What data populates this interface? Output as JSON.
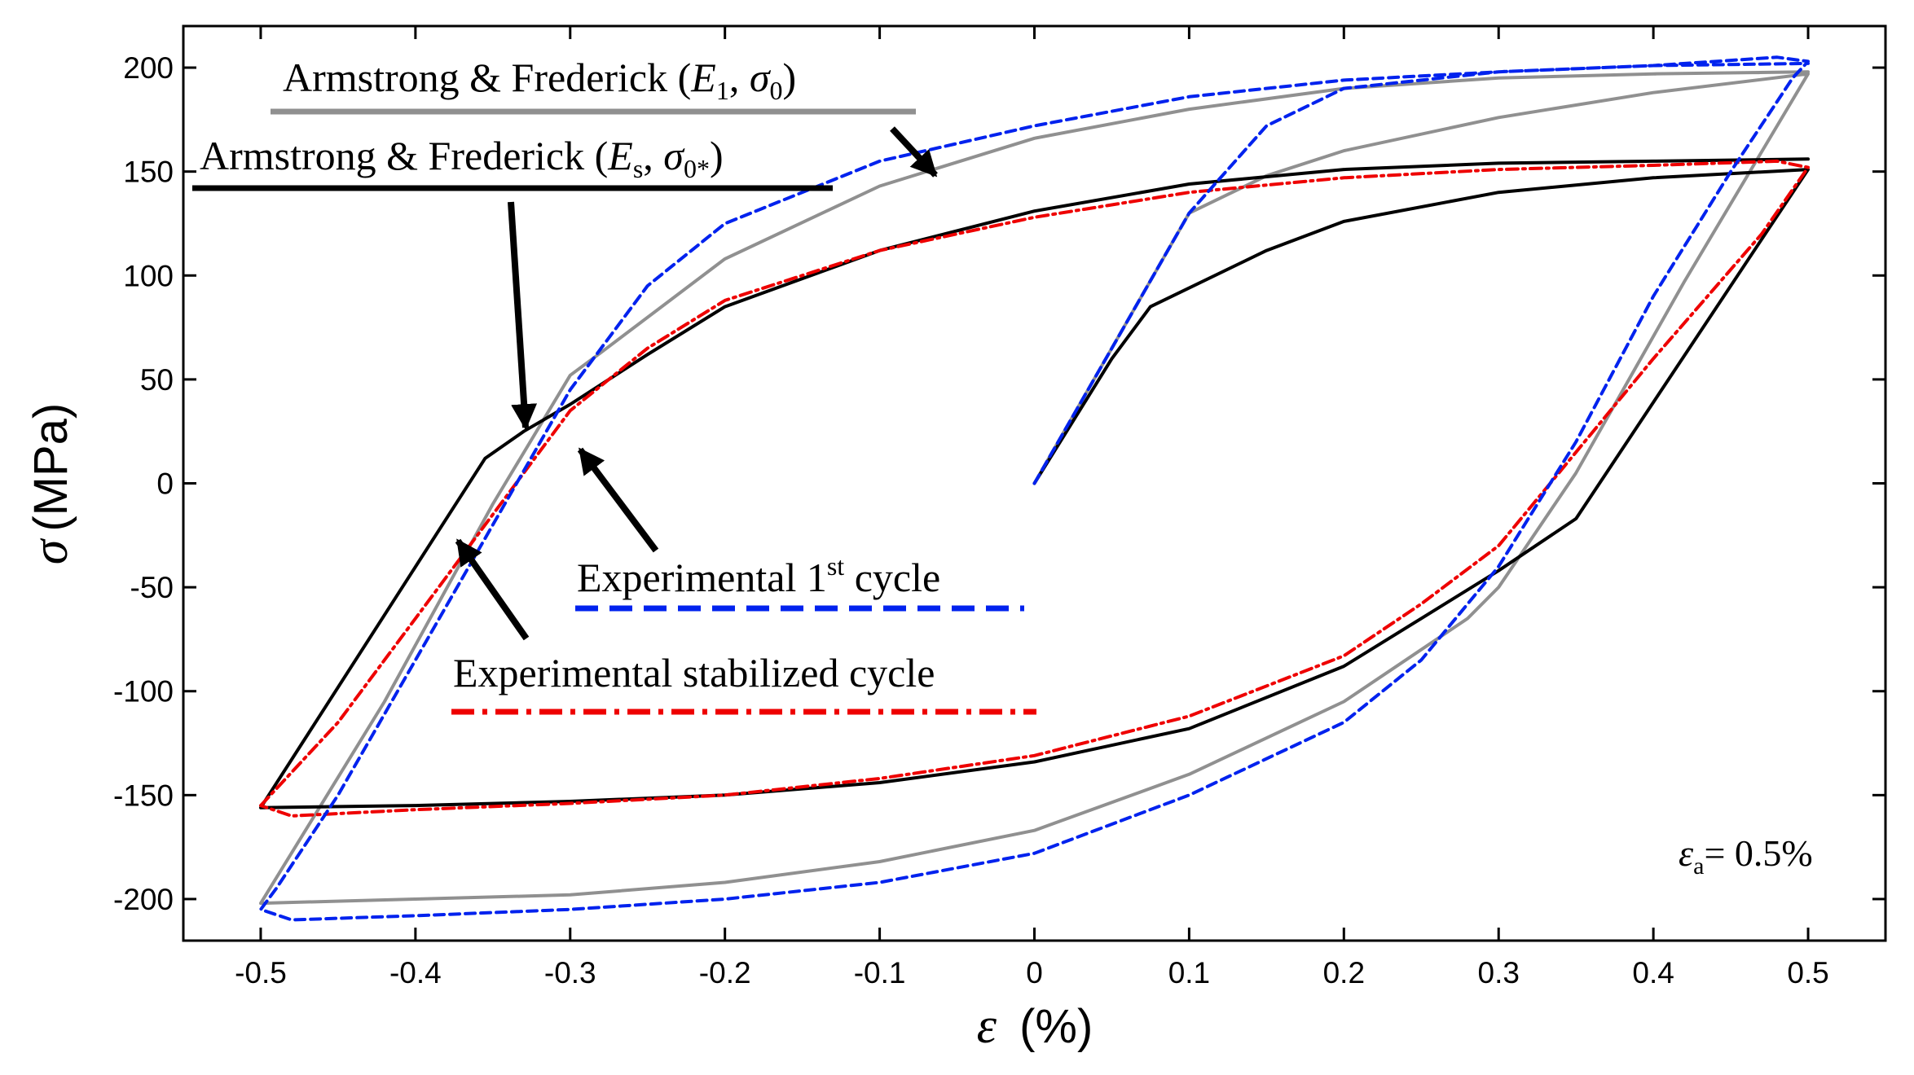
{
  "chart_data": {
    "type": "line",
    "title": "",
    "xlabel": {
      "symbol": "ε",
      "unit": "(%)"
    },
    "ylabel": {
      "symbol": "σ",
      "unit": "(MPa)"
    },
    "xlim": [
      -0.55,
      0.55
    ],
    "ylim": [
      -220,
      220
    ],
    "x_ticks": [
      -0.5,
      -0.4,
      -0.3,
      -0.2,
      -0.1,
      0,
      0.1,
      0.2,
      0.3,
      0.4,
      0.5
    ],
    "y_ticks": [
      -200,
      -150,
      -100,
      -50,
      0,
      50,
      100,
      150,
      200
    ],
    "x_tick_labels": [
      "-0.5",
      "-0.4",
      "-0.3",
      "-0.2",
      "-0.1",
      "0",
      "0.1",
      "0.2",
      "0.3",
      "0.4",
      "0.5"
    ],
    "y_tick_labels": [
      "-200",
      "-150",
      "-100",
      "-50",
      "0",
      "50",
      "100",
      "150",
      "200"
    ],
    "grid": false,
    "annotation": {
      "symbol": "ε",
      "subscript": "a",
      "value": "= 0.5%"
    },
    "series": [
      {
        "name": "Experimental 1st cycle",
        "legend_label": "Experimental",
        "legend_suffix": "cycle",
        "legend_sup": "st",
        "legend_num": "1",
        "color": "#0022ee",
        "style": "dashed",
        "points": [
          [
            0,
            0
          ],
          [
            0.05,
            65
          ],
          [
            0.1,
            130
          ],
          [
            0.15,
            172
          ],
          [
            0.2,
            190
          ],
          [
            0.3,
            198
          ],
          [
            0.4,
            201
          ],
          [
            0.48,
            205
          ],
          [
            0.5,
            203
          ],
          [
            0.49,
            195
          ],
          [
            0.45,
            150
          ],
          [
            0.4,
            90
          ],
          [
            0.35,
            20
          ],
          [
            0.3,
            -40
          ],
          [
            0.25,
            -85
          ],
          [
            0.2,
            -115
          ],
          [
            0.1,
            -150
          ],
          [
            0,
            -178
          ],
          [
            -0.1,
            -192
          ],
          [
            -0.2,
            -200
          ],
          [
            -0.3,
            -205
          ],
          [
            -0.4,
            -208
          ],
          [
            -0.48,
            -210
          ],
          [
            -0.5,
            -205
          ],
          [
            -0.49,
            -195
          ],
          [
            -0.45,
            -150
          ],
          [
            -0.4,
            -85
          ],
          [
            -0.35,
            -20
          ],
          [
            -0.3,
            45
          ],
          [
            -0.25,
            95
          ],
          [
            -0.2,
            125
          ],
          [
            -0.1,
            155
          ],
          [
            0,
            172
          ],
          [
            0.1,
            186
          ],
          [
            0.2,
            194
          ],
          [
            0.3,
            198
          ],
          [
            0.4,
            201
          ],
          [
            0.5,
            202
          ]
        ]
      },
      {
        "name": "Experimental stabilized cycle",
        "legend_label": "Experimental stabilized cycle",
        "color": "#ee0000",
        "style": "dashdot",
        "points": [
          [
            -0.5,
            -155
          ],
          [
            -0.45,
            -115
          ],
          [
            -0.4,
            -65
          ],
          [
            -0.35,
            -15
          ],
          [
            -0.3,
            35
          ],
          [
            -0.25,
            65
          ],
          [
            -0.2,
            88
          ],
          [
            -0.1,
            112
          ],
          [
            0,
            128
          ],
          [
            0.1,
            140
          ],
          [
            0.2,
            147
          ],
          [
            0.3,
            151
          ],
          [
            0.4,
            153
          ],
          [
            0.48,
            155
          ],
          [
            0.5,
            152
          ],
          [
            0.47,
            120
          ],
          [
            0.4,
            60
          ],
          [
            0.35,
            15
          ],
          [
            0.3,
            -30
          ],
          [
            0.25,
            -58
          ],
          [
            0.2,
            -83
          ],
          [
            0.1,
            -112
          ],
          [
            0,
            -131
          ],
          [
            -0.1,
            -142
          ],
          [
            -0.2,
            -150
          ],
          [
            -0.3,
            -154
          ],
          [
            -0.4,
            -157
          ],
          [
            -0.48,
            -160
          ],
          [
            -0.5,
            -155
          ]
        ]
      },
      {
        "name": "Armstrong & Frederick (E1, σ0)",
        "legend_label": "Armstrong & Frederick",
        "color": "#909090",
        "style": "solid",
        "points": [
          [
            0,
            0
          ],
          [
            0.05,
            65
          ],
          [
            0.1,
            130
          ],
          [
            0.15,
            148
          ],
          [
            0.2,
            160
          ],
          [
            0.3,
            176
          ],
          [
            0.4,
            188
          ],
          [
            0.5,
            197
          ],
          [
            0.42,
            97
          ],
          [
            0.35,
            5
          ],
          [
            0.3,
            -50
          ],
          [
            0.28,
            -65
          ],
          [
            0.2,
            -105
          ],
          [
            0.1,
            -140
          ],
          [
            0,
            -167
          ],
          [
            -0.1,
            -182
          ],
          [
            -0.2,
            -192
          ],
          [
            -0.3,
            -198
          ],
          [
            -0.4,
            -200
          ],
          [
            -0.5,
            -202
          ],
          [
            -0.42,
            -105
          ],
          [
            -0.35,
            -10
          ],
          [
            -0.3,
            52
          ],
          [
            -0.28,
            63
          ],
          [
            -0.2,
            108
          ],
          [
            -0.1,
            143
          ],
          [
            0,
            166
          ],
          [
            0.1,
            180
          ],
          [
            0.2,
            190
          ],
          [
            0.3,
            195
          ],
          [
            0.4,
            197
          ],
          [
            0.5,
            198
          ]
        ]
      },
      {
        "name": "Armstrong & Frederick (Es, σ0*)",
        "legend_label": "Armstrong & Frederick",
        "color": "#000000",
        "style": "solid",
        "points": [
          [
            0,
            0
          ],
          [
            0.05,
            60
          ],
          [
            0.075,
            85
          ],
          [
            0.15,
            112
          ],
          [
            0.2,
            126
          ],
          [
            0.3,
            140
          ],
          [
            0.4,
            147
          ],
          [
            0.5,
            151
          ],
          [
            0.35,
            -17
          ],
          [
            0.3,
            -42
          ],
          [
            0.25,
            -65
          ],
          [
            0.2,
            -88
          ],
          [
            0.1,
            -118
          ],
          [
            0,
            -134
          ],
          [
            -0.1,
            -144
          ],
          [
            -0.2,
            -150
          ],
          [
            -0.3,
            -153
          ],
          [
            -0.4,
            -155
          ],
          [
            -0.5,
            -156
          ],
          [
            -0.355,
            12
          ],
          [
            -0.33,
            25
          ],
          [
            -0.3,
            38
          ],
          [
            -0.25,
            62
          ],
          [
            -0.2,
            85
          ],
          [
            -0.1,
            112
          ],
          [
            0,
            131
          ],
          [
            0.1,
            144
          ],
          [
            0.2,
            151
          ],
          [
            0.3,
            154
          ],
          [
            0.4,
            155
          ],
          [
            0.5,
            156
          ]
        ]
      }
    ]
  }
}
